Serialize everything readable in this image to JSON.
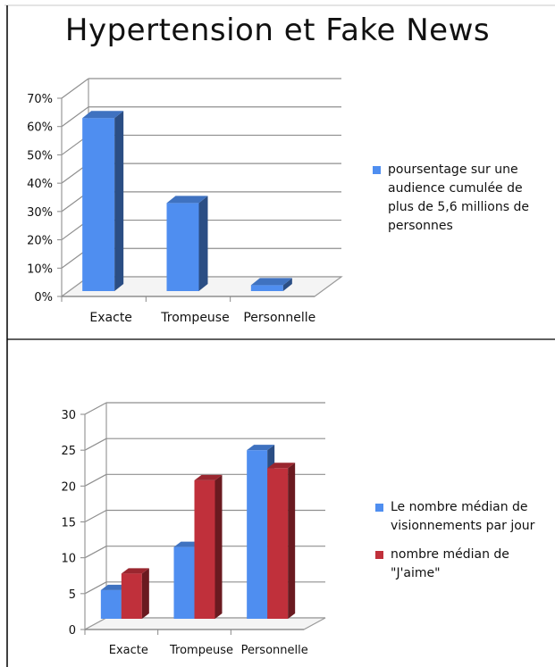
{
  "page": {
    "title": "Hypertension et Fake News"
  },
  "chart_data": [
    {
      "type": "bar",
      "categories": [
        "Exacte",
        "Trompeuse",
        "Personnelle"
      ],
      "series": [
        {
          "name": "poursentage sur une audience cumulée de plus de 5,6 millions de personnes",
          "values": [
            63,
            33,
            4
          ],
          "color": "#4f8ef0"
        }
      ],
      "yticks": [
        "0%",
        "10%",
        "20%",
        "30%",
        "40%",
        "50%",
        "60%",
        "70%"
      ],
      "ylim": [
        0,
        70
      ],
      "grid": true,
      "legend_position": "right",
      "style": "3d"
    },
    {
      "type": "bar",
      "categories": [
        "Exacte",
        "Trompeuse",
        "Personnelle"
      ],
      "series": [
        {
          "name": "Le nombre médian de visionnements par jour",
          "values": [
            5.5,
            11.5,
            25
          ],
          "color": "#4f8ef0"
        },
        {
          "name": "nombre médian de \"J'aime\"",
          "values": [
            7.8,
            20.8,
            22.5
          ],
          "color": "#c0303b"
        }
      ],
      "yticks": [
        "0",
        "5",
        "10",
        "15",
        "20",
        "25",
        "30"
      ],
      "ylim": [
        0,
        30
      ],
      "grid": true,
      "legend_position": "right",
      "style": "3d"
    }
  ]
}
